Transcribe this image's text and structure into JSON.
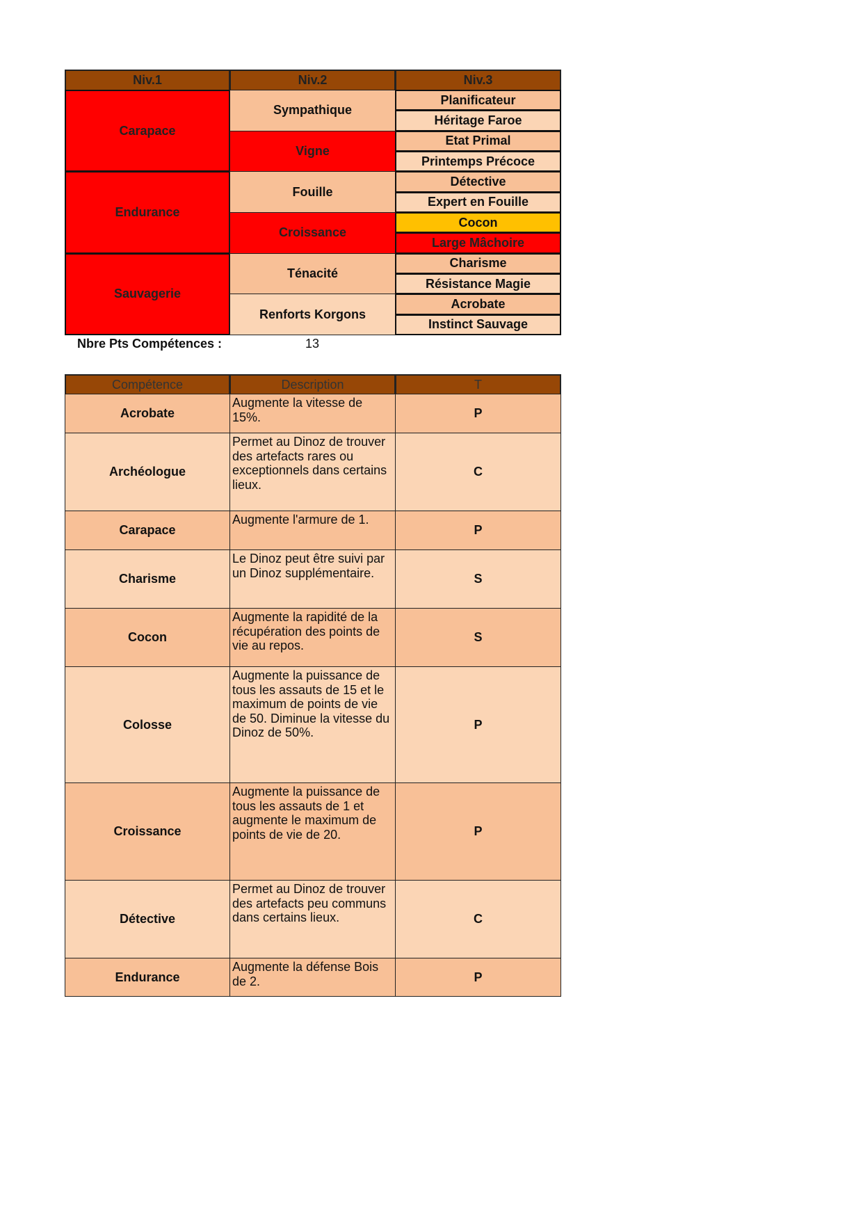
{
  "tree": {
    "headers": [
      "Niv.1",
      "Niv.2",
      "Niv.3"
    ],
    "niv1": [
      "Carapace",
      "Endurance",
      "Sauvagerie"
    ],
    "niv2": [
      "Sympathique",
      "Vigne",
      "Fouille",
      "Croissance",
      "Ténacité",
      "Renforts Korgons"
    ],
    "niv3": [
      "Planificateur",
      "Héritage Faroe",
      "Etat Primal",
      "Printemps Précoce",
      "Détective",
      "Expert en Fouille",
      "Cocon",
      "Large Mâchoire",
      "Charisme",
      "Résistance Magie",
      "Acrobate",
      "Instinct Sauvage"
    ],
    "points_label": "Nbre Pts Compétences :",
    "points_value": "13"
  },
  "colors": {
    "header": "#974706",
    "selected": "#ff0000",
    "highlight": "#ffc000",
    "dark_row": "#f8c097",
    "light_row": "#fbd5b5"
  },
  "skills": {
    "headers": [
      "Compétence",
      "Description",
      "T"
    ],
    "rows": [
      {
        "name": "Acrobate",
        "description": "Augmente la vitesse de 15%.",
        "type": "P"
      },
      {
        "name": "Archéologue",
        "description": "Permet au Dinoz de trouver des artefacts rares ou exceptionnels dans certains lieux.",
        "type": "C"
      },
      {
        "name": "Carapace",
        "description": "Augmente l'armure de 1.",
        "type": "P"
      },
      {
        "name": "Charisme",
        "description": "Le Dinoz peut être suivi par un Dinoz supplémentaire.",
        "type": "S"
      },
      {
        "name": "Cocon",
        "description": "Augmente la rapidité de la récupération des points de vie au repos.",
        "type": "S"
      },
      {
        "name": "Colosse",
        "description": "Augmente la puissance de tous les assauts de 15 et le maximum de points de vie de 50. Diminue la vitesse du Dinoz de 50%.",
        "type": "P"
      },
      {
        "name": "Croissance",
        "description": "Augmente la puissance de tous les assauts de 1 et augmente le maximum de points de vie de 20.",
        "type": "P"
      },
      {
        "name": "Détective",
        "description": "Permet au Dinoz de trouver des artefacts peu communs dans certains lieux.",
        "type": "C"
      },
      {
        "name": "Endurance",
        "description": "Augmente la défense Bois de 2.",
        "type": "P"
      }
    ]
  }
}
